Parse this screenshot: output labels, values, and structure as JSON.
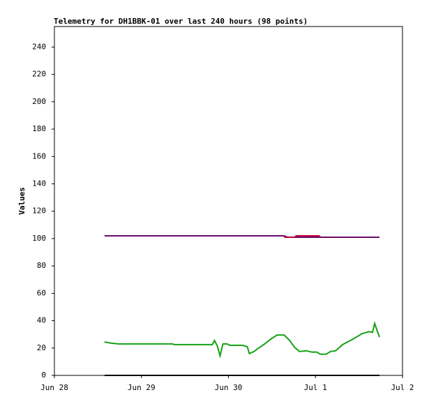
{
  "chart_data": {
    "type": "line",
    "title": "Telemetry for DH1BBK-01 over last 240 hours (98 points)",
    "y_label": "Values",
    "xlim": [
      0,
      4
    ],
    "ylim": [
      0,
      255
    ],
    "xticks": [
      {
        "value": 0,
        "label": "Jun 28"
      },
      {
        "value": 1,
        "label": "Jun 29"
      },
      {
        "value": 2,
        "label": "Jun 30"
      },
      {
        "value": 3,
        "label": "Jul 1"
      },
      {
        "value": 4,
        "label": "Jul 2"
      }
    ],
    "yticks": [
      0,
      20,
      40,
      60,
      80,
      100,
      120,
      140,
      160,
      180,
      200,
      220,
      240
    ],
    "series": [
      {
        "color": "#6a0a6a",
        "x": [
          0.576,
          2.64,
          2.68,
          3.736
        ],
        "values": [
          102,
          102,
          101,
          101
        ]
      },
      {
        "color": "#c0003c",
        "x": [
          2.64,
          2.76,
          2.78,
          3.04,
          3.06
        ],
        "values": [
          101,
          101,
          102,
          102,
          101
        ]
      },
      {
        "color": "#14a014",
        "x": [
          0.576,
          0.656,
          0.736,
          1.36,
          1.376,
          1.816,
          1.84,
          1.872,
          1.904,
          1.936,
          1.984,
          2.016,
          2.16,
          2.216,
          2.24,
          2.296,
          2.336,
          2.416,
          2.496,
          2.56,
          2.64,
          2.704,
          2.76,
          2.816,
          2.896,
          2.96,
          3.016,
          3.056,
          3.12,
          3.176,
          3.232,
          3.312,
          3.416,
          3.536,
          3.616,
          3.656,
          3.68,
          3.704,
          3.736
        ],
        "values": [
          24.5,
          23.5,
          23,
          23,
          22.5,
          22.5,
          25.5,
          21.5,
          14.3,
          23,
          23,
          22,
          22,
          21,
          16,
          17.5,
          19.5,
          23,
          27,
          29.5,
          29.5,
          25.5,
          20.5,
          17.5,
          18,
          17,
          17,
          15.5,
          15.5,
          17.5,
          18,
          22.5,
          26,
          30.5,
          32,
          31.5,
          38,
          33.5,
          28
        ]
      },
      {
        "color": "#000000",
        "x": [
          0.576,
          3.736
        ],
        "values": [
          0,
          0
        ]
      }
    ]
  }
}
